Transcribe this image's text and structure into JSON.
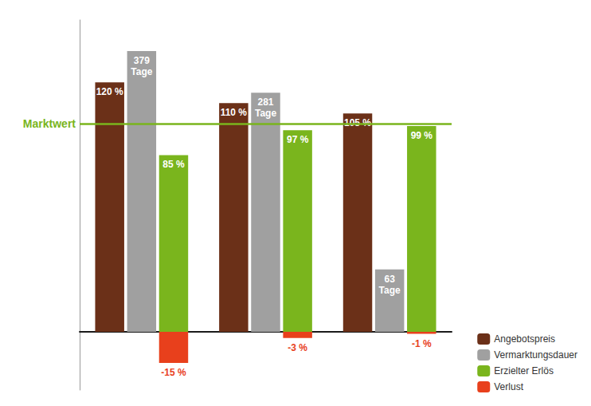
{
  "chart_data": {
    "type": "bar",
    "categories": [
      null,
      null,
      null
    ],
    "series": [
      {
        "name": "Angebotspreis",
        "color": "#6b3018",
        "values": [
          120,
          110,
          105
        ],
        "value_labels": [
          "120 %",
          "110 %",
          "105 %"
        ]
      },
      {
        "name": "Vermarktungsdauer",
        "color": "#a0a0a0",
        "values": [
          135,
          115,
          30
        ],
        "value_labels": [
          "379\nTage",
          "281\nTage",
          "63\nTage"
        ]
      },
      {
        "name": "Erzielter Erlös",
        "color": "#7ab51d",
        "values": [
          85,
          97,
          99
        ],
        "value_labels": [
          "85 %",
          "97 %",
          "99 %"
        ],
        "stacked": true
      },
      {
        "name": "Verlust",
        "color": "#e8401c",
        "values": [
          -15,
          -3,
          -1
        ],
        "value_labels": [
          "-15 %",
          "-3 %",
          "-1 %"
        ],
        "stacked": true
      }
    ],
    "hlines": [
      {
        "y": 100,
        "label": "Marktwert",
        "color": "#7ab51d"
      }
    ],
    "ylim": [
      -28,
      150
    ],
    "tick_labels": false,
    "grid": false,
    "legend": "lower right",
    "data_labels": true
  }
}
